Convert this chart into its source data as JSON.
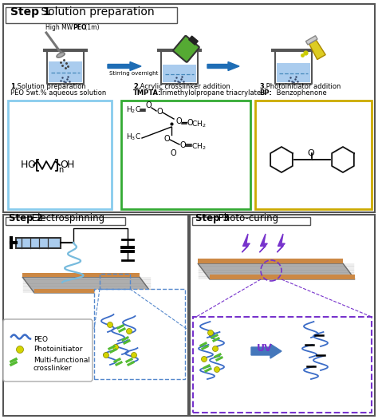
{
  "bg": "#ffffff",
  "border": "#444444",
  "arrow_blue": "#1e6db5",
  "water_blue": "#b8d4e8",
  "dashed_blue": "#5588cc",
  "peo_blue": "#3b6cc7",
  "yellow_dot": "#d4d400",
  "green_cross": "#55bb33",
  "purple": "#7733cc",
  "uv_arrow": "#4477bb",
  "orange_mat": "#cc8844",
  "mat_gray": "#999999",
  "green_bottle": "#55aa33",
  "yellow_vial": "#ddcc22",
  "step1_title": "Step 1",
  "step1_rest": " Solution preparation",
  "step2_title": "Step 2",
  "step2_rest": " Electrospinning",
  "step3_title": "Step 3",
  "step3_rest": " Photo-curing",
  "high_mw": "High MW ",
  "peo_bold": "PEO",
  "one_m": " (1m)",
  "stirring": "Stirring overnight",
  "label1a": "1.",
  "label1b": " Solution preparation",
  "label1c": "PEO 5wt.% aqueous solution",
  "label2a": "2.",
  "label2b": " Acrylic crosslinker addition",
  "label2c_bold": "TMPTA:",
  "label2d": " Trimethylolpropane triacrylate",
  "label3a": "3.",
  "label3b": " Photoinitiator addition",
  "label3c_bold": "BP:",
  "label3d": " Benzophenone",
  "peo_legend": "PEO",
  "photo_legend": "Photoinitiator",
  "cross_legend1": "Multi-functional",
  "cross_legend2": "crosslinker",
  "uv_text": "UV"
}
